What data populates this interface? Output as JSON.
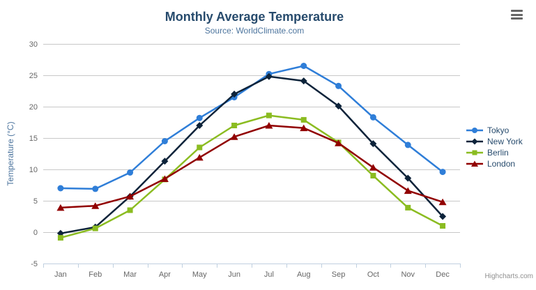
{
  "chart_data": {
    "type": "line",
    "title": "Monthly Average Temperature",
    "subtitle": "Source: WorldClimate.com",
    "xlabel": "",
    "ylabel": "Temperature (°C)",
    "ylim": [
      -5,
      30
    ],
    "ytick_interval": 5,
    "grid": true,
    "grid_color": "#c8c8c8",
    "axis_line_color": "#c0d0e0",
    "tick_label_color": "#666666",
    "axis_title_color": "#4d759e",
    "legend_position": "right",
    "categories": [
      "Jan",
      "Feb",
      "Mar",
      "Apr",
      "May",
      "Jun",
      "Jul",
      "Aug",
      "Sep",
      "Oct",
      "Nov",
      "Dec"
    ],
    "series": [
      {
        "name": "Tokyo",
        "color": "#2f7ed8",
        "marker": "circle",
        "values": [
          7.0,
          6.9,
          9.5,
          14.5,
          18.2,
          21.5,
          25.2,
          26.5,
          23.3,
          18.3,
          13.9,
          9.6
        ]
      },
      {
        "name": "New York",
        "color": "#0d233a",
        "marker": "diamond",
        "values": [
          -0.2,
          0.8,
          5.7,
          11.3,
          17.0,
          22.0,
          24.8,
          24.1,
          20.1,
          14.1,
          8.6,
          2.5
        ]
      },
      {
        "name": "Berlin",
        "color": "#8bbc21",
        "marker": "square",
        "values": [
          -0.9,
          0.6,
          3.5,
          8.4,
          13.5,
          17.0,
          18.6,
          17.9,
          14.3,
          9.0,
          3.9,
          1.0
        ]
      },
      {
        "name": "London",
        "color": "#910000",
        "marker": "triangle",
        "values": [
          3.9,
          4.2,
          5.7,
          8.5,
          11.9,
          15.2,
          17.0,
          16.6,
          14.2,
          10.3,
          6.6,
          4.8
        ]
      }
    ]
  },
  "header": {
    "menu_icon": "hamburger-menu-icon"
  },
  "credits": {
    "text": "Highcharts.com"
  }
}
